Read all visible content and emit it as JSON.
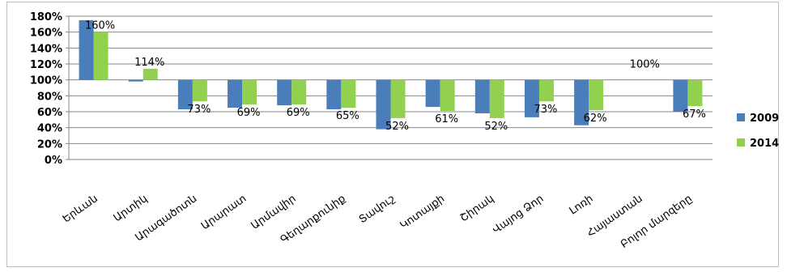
{
  "chart_data": {
    "type": "bar",
    "categories": [
      "Երևան",
      "Արտիկ",
      "Արագածոտն",
      "Արարատ",
      "Արմավիր",
      "Գեղարքունիք",
      "Տավուշ",
      "Կոտայքի",
      "Շիրակ",
      "Վայոց Ձոր",
      "Լոռի",
      "Հայաստան",
      "Բոլոր մարզերը"
    ],
    "series": [
      {
        "name": "2009",
        "color": "#4a7ebb",
        "values": [
          175,
          98,
          63,
          65,
          68,
          63,
          38,
          66,
          58,
          53,
          43,
          100,
          60
        ]
      },
      {
        "name": "2014",
        "color": "#92d050",
        "values": [
          160,
          114,
          73,
          69,
          69,
          65,
          52,
          61,
          52,
          73,
          62,
          100,
          67
        ]
      }
    ],
    "data_labels": [
      "160%",
      "114%",
      "73%",
      "69%",
      "69%",
      "65%",
      "52%",
      "61%",
      "52%",
      "73%",
      "62%",
      "100%",
      "67%"
    ],
    "baseline": 100,
    "ylim": [
      0,
      180
    ],
    "yticks": [
      "0%",
      "20%",
      "40%",
      "60%",
      "80%",
      "100%",
      "120%",
      "140%",
      "160%",
      "180%"
    ],
    "grid": true,
    "legend_position": "right",
    "title": "",
    "xlabel": "",
    "ylabel": ""
  }
}
